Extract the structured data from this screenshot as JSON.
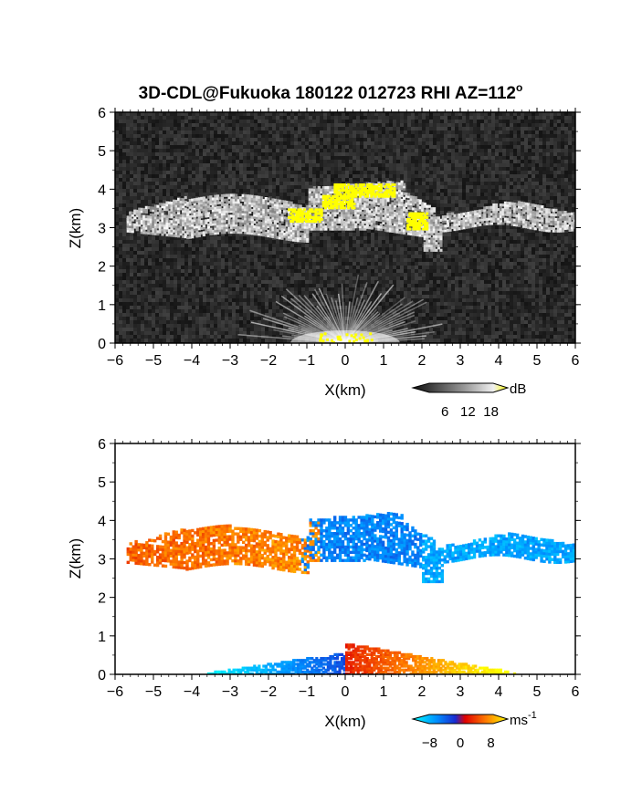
{
  "chart_data": [
    {
      "type": "heatmap",
      "title": "3D-CDL@Fukuoka 180122 012723 RHI AZ=112",
      "title_superscript": "o",
      "xlabel": "X(km)",
      "ylabel": "Z(km)",
      "xlim": [
        -6,
        6
      ],
      "ylim": [
        0,
        6
      ],
      "xticks": [
        -6,
        -5,
        -4,
        -3,
        -2,
        -1,
        0,
        1,
        2,
        3,
        4,
        5,
        6
      ],
      "yticks": [
        0,
        1,
        2,
        3,
        4,
        5,
        6
      ],
      "background": "noisy dark gray",
      "colorbar": {
        "unit": "dB",
        "ticks": [
          6,
          12,
          18
        ],
        "range": [
          0,
          20
        ],
        "colors": [
          "#000000",
          "#ffffff",
          "#ffff00"
        ]
      },
      "features": [
        {
          "label": "cloud layer",
          "x_range": [
            -5.7,
            6.0
          ],
          "z_range": [
            2.6,
            4.3
          ],
          "intensity_db": "8-14"
        },
        {
          "label": "strong echo (>18 dB)",
          "x_range": [
            -0.5,
            1.3
          ],
          "z_range": [
            3.6,
            4.2
          ],
          "intensity_db": ">18"
        },
        {
          "label": "near-ground bright fan",
          "x_range": [
            -1.5,
            1.5
          ],
          "z_range": [
            0.0,
            0.6
          ],
          "intensity_db": "10-18"
        }
      ]
    },
    {
      "type": "heatmap",
      "xlabel": "X(km)",
      "ylabel": "Z(km)",
      "xlim": [
        -6,
        6
      ],
      "ylim": [
        0,
        6
      ],
      "xticks": [
        -6,
        -5,
        -4,
        -3,
        -2,
        -1,
        0,
        1,
        2,
        3,
        4,
        5,
        6
      ],
      "yticks": [
        0,
        1,
        2,
        3,
        4,
        5,
        6
      ],
      "background": "white",
      "colorbar": {
        "unit": "ms",
        "unit_superscript": "-1",
        "ticks": [
          -8,
          0,
          8
        ],
        "range": [
          -10,
          10
        ],
        "colors": [
          "#00ffff",
          "#0060ff",
          "#2020a0",
          "#e00000",
          "#ff8000",
          "#ffff00"
        ]
      },
      "features": [
        {
          "label": "cloud layer receding",
          "x_range": [
            -5.7,
            -0.7
          ],
          "z_range": [
            2.6,
            4.0
          ],
          "velocity_ms": "2-8"
        },
        {
          "label": "cloud layer approaching",
          "x_range": [
            -0.7,
            6.0
          ],
          "z_range": [
            2.4,
            4.3
          ],
          "velocity_ms": "-8 to -3"
        },
        {
          "label": "boundary layer approaching",
          "x_range": [
            -3.6,
            -0.1
          ],
          "z_range": [
            0.0,
            0.6
          ],
          "velocity_ms": "-8 to -3"
        },
        {
          "label": "boundary layer receding",
          "x_range": [
            0.0,
            4.4
          ],
          "z_range": [
            0.0,
            0.8
          ],
          "velocity_ms": "2-8"
        }
      ]
    }
  ]
}
